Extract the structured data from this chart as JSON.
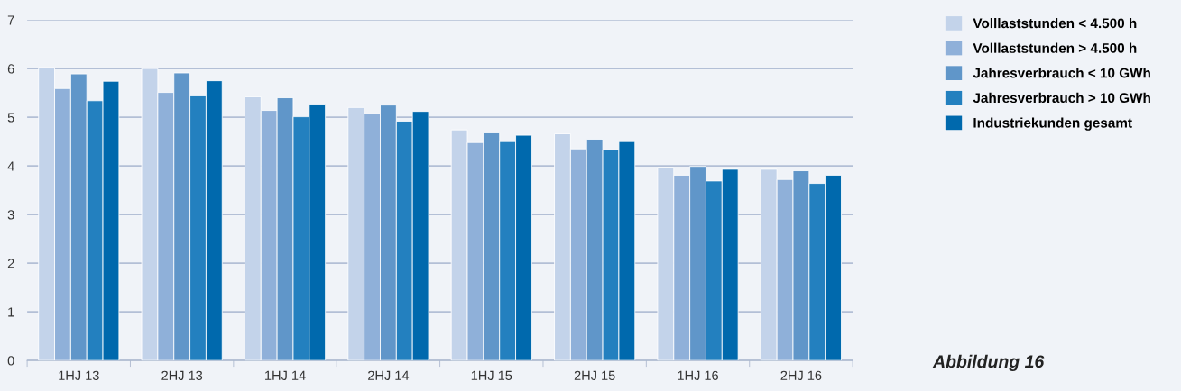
{
  "chart_data": {
    "type": "bar",
    "categories": [
      "1HJ 13",
      "2HJ 13",
      "1HJ 14",
      "2HJ 14",
      "1HJ 15",
      "2HJ 15",
      "1HJ 16",
      "2HJ 16"
    ],
    "series": [
      {
        "name": "Volllaststunden < 4.500 h",
        "color": "#c3d3ea",
        "values": [
          6.02,
          6.0,
          5.42,
          5.2,
          4.74,
          4.66,
          3.97,
          3.93
        ]
      },
      {
        "name": "Volllaststunden > 4.500 h",
        "color": "#8fb0d9",
        "values": [
          5.59,
          5.51,
          5.14,
          5.07,
          4.48,
          4.35,
          3.81,
          3.72
        ]
      },
      {
        "name": "Jahresverbrauch < 10 GWh",
        "color": "#6096c9",
        "values": [
          5.89,
          5.91,
          5.4,
          5.25,
          4.68,
          4.55,
          3.99,
          3.9
        ]
      },
      {
        "name": "Jahresverbrauch > 10 GWh",
        "color": "#2380bf",
        "values": [
          5.34,
          5.44,
          5.01,
          4.92,
          4.5,
          4.33,
          3.69,
          3.64
        ]
      },
      {
        "name": "Industriekunden gesamt",
        "color": "#0069ad",
        "values": [
          5.74,
          5.75,
          5.27,
          5.12,
          4.63,
          4.5,
          3.93,
          3.81
        ]
      }
    ],
    "ylim": [
      0,
      7
    ],
    "yticks": [
      0,
      1,
      2,
      3,
      4,
      5,
      6,
      7
    ],
    "grid": "y",
    "legend": "right",
    "annotations": [
      "Abbildung 16"
    ]
  }
}
